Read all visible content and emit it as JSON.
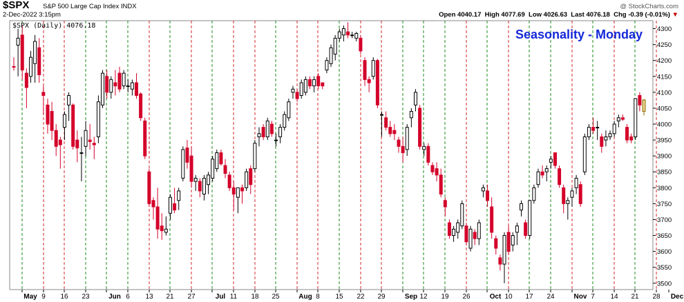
{
  "header": {
    "symbol": "$SPX",
    "full_name": "S&P 500 Large Cap Index INDX",
    "datetime": "2-Dec-2022 3:15pm",
    "credit": "@ StockCharts.com",
    "open_label": "Open",
    "open": "4040.17",
    "high_label": "High",
    "high": "4077.69",
    "low_label": "Low",
    "low": "4026.63",
    "last_label": "Last",
    "last": "4076.18",
    "chg_label": "Chg",
    "chg": "-0.39 (-0.01%)",
    "chg_marker": "▼"
  },
  "chart_data": {
    "type": "candlestick",
    "title": "Seasonality - Monday",
    "legend": "$SPX (Daily) 4076.18",
    "ylim": [
      3480,
      4325
    ],
    "y_ticks": [
      3500,
      3550,
      3600,
      3650,
      3700,
      3750,
      3800,
      3850,
      3900,
      3950,
      4000,
      4050,
      4100,
      4150,
      4200,
      4250,
      4300
    ],
    "x_ticks": [
      {
        "label": "May",
        "type": "month"
      },
      {
        "label": "9"
      },
      {
        "label": "16"
      },
      {
        "label": "23"
      },
      {
        "label": "Jun",
        "type": "month"
      },
      {
        "label": "6"
      },
      {
        "label": "13"
      },
      {
        "label": "21"
      },
      {
        "label": "27"
      },
      {
        "label": "Jul",
        "type": "month"
      },
      {
        "label": "11"
      },
      {
        "label": "18"
      },
      {
        "label": "25"
      },
      {
        "label": "Aug",
        "type": "month"
      },
      {
        "label": "8"
      },
      {
        "label": "15"
      },
      {
        "label": "22"
      },
      {
        "label": "29"
      },
      {
        "label": "Sep",
        "type": "month"
      },
      {
        "label": "12"
      },
      {
        "label": "19"
      },
      {
        "label": "26"
      },
      {
        "label": "Oct",
        "type": "month"
      },
      {
        "label": "10"
      },
      {
        "label": "17"
      },
      {
        "label": "24"
      },
      {
        "label": "Nov",
        "type": "month"
      },
      {
        "label": "7"
      },
      {
        "label": "14"
      },
      {
        "label": "21"
      },
      {
        "label": "28"
      },
      {
        "label": "Dec",
        "type": "month"
      }
    ],
    "monday_lines": [
      {
        "label": "May 2",
        "color": "green"
      },
      {
        "label": "May 9",
        "color": "red"
      },
      {
        "label": "May 16",
        "color": "red"
      },
      {
        "label": "May 23",
        "color": "green"
      },
      {
        "label": "May 31",
        "color": "green"
      },
      {
        "label": "Jun 6",
        "color": "green"
      },
      {
        "label": "Jun 13",
        "color": "red"
      },
      {
        "label": "Jun 21",
        "color": "green"
      },
      {
        "label": "Jun 27",
        "color": "red"
      },
      {
        "label": "Jul 4",
        "color": "green"
      },
      {
        "label": "Jul 11",
        "color": "red"
      },
      {
        "label": "Jul 18",
        "color": "red"
      },
      {
        "label": "Jul 25",
        "color": "green"
      },
      {
        "label": "Aug 1",
        "color": "red"
      },
      {
        "label": "Aug 8",
        "color": "red"
      },
      {
        "label": "Aug 15",
        "color": "green"
      },
      {
        "label": "Aug 22",
        "color": "red"
      },
      {
        "label": "Aug 29",
        "color": "red"
      },
      {
        "label": "Sep 6",
        "color": "green"
      },
      {
        "label": "Sep 12",
        "color": "green"
      },
      {
        "label": "Sep 19",
        "color": "green"
      },
      {
        "label": "Sep 26",
        "color": "red"
      },
      {
        "label": "Oct 3",
        "color": "green"
      },
      {
        "label": "Oct 10",
        "color": "red"
      },
      {
        "label": "Oct 17",
        "color": "green"
      },
      {
        "label": "Oct 24",
        "color": "green"
      },
      {
        "label": "Oct 31",
        "color": "red"
      },
      {
        "label": "Nov 7",
        "color": "green"
      },
      {
        "label": "Nov 14",
        "color": "red"
      },
      {
        "label": "Nov 21",
        "color": "green"
      },
      {
        "label": "Nov 28",
        "color": "red"
      }
    ],
    "candles": [
      {
        "o": 4181,
        "h": 4210,
        "l": 4168,
        "c": 4180
      },
      {
        "o": 4248,
        "h": 4300,
        "l": 4150,
        "c": 4270
      },
      {
        "o": 4280,
        "h": 4310,
        "l": 4140,
        "c": 4170
      },
      {
        "o": 4160,
        "h": 4175,
        "l": 4050,
        "c": 4115
      },
      {
        "o": 4150,
        "h": 4230,
        "l": 4130,
        "c": 4210
      },
      {
        "o": 4190,
        "h": 4280,
        "l": 4130,
        "c": 4260
      },
      {
        "o": 4240,
        "h": 4270,
        "l": 4130,
        "c": 4155
      },
      {
        "o": 4100,
        "h": 4120,
        "l": 4030,
        "c": 4090
      },
      {
        "o": 4060,
        "h": 4080,
        "l": 3970,
        "c": 4000
      },
      {
        "o": 4040,
        "h": 4070,
        "l": 3950,
        "c": 3980
      },
      {
        "o": 3980,
        "h": 4000,
        "l": 3900,
        "c": 3930
      },
      {
        "o": 3950,
        "h": 3960,
        "l": 3860,
        "c": 3935
      },
      {
        "o": 3990,
        "h": 4040,
        "l": 3950,
        "c": 4030
      },
      {
        "o": 4060,
        "h": 4100,
        "l": 4010,
        "c": 4090
      },
      {
        "o": 4060,
        "h": 4065,
        "l": 3920,
        "c": 3930
      },
      {
        "o": 3950,
        "h": 3980,
        "l": 3880,
        "c": 3925
      },
      {
        "o": 3910,
        "h": 3960,
        "l": 3820,
        "c": 3910
      },
      {
        "o": 3930,
        "h": 4010,
        "l": 3900,
        "c": 3980
      },
      {
        "o": 3950,
        "h": 4000,
        "l": 3920,
        "c": 3945
      },
      {
        "o": 3940,
        "h": 3960,
        "l": 3890,
        "c": 3935
      },
      {
        "o": 3960,
        "h": 4090,
        "l": 3940,
        "c": 4070
      },
      {
        "o": 4060,
        "h": 4170,
        "l": 4050,
        "c": 4160
      },
      {
        "o": 4150,
        "h": 4170,
        "l": 4080,
        "c": 4100
      },
      {
        "o": 4100,
        "h": 4150,
        "l": 4080,
        "c": 4140
      },
      {
        "o": 4130,
        "h": 4170,
        "l": 4090,
        "c": 4120
      },
      {
        "o": 4160,
        "h": 4180,
        "l": 4100,
        "c": 4110
      },
      {
        "o": 4120,
        "h": 4170,
        "l": 4110,
        "c": 4160
      },
      {
        "o": 4120,
        "h": 4140,
        "l": 4100,
        "c": 4120
      },
      {
        "o": 4110,
        "h": 4140,
        "l": 4090,
        "c": 4130
      },
      {
        "o": 4130,
        "h": 4160,
        "l": 4080,
        "c": 4090
      },
      {
        "o": 4095,
        "h": 4100,
        "l": 4010,
        "c": 4020
      },
      {
        "o": 4010,
        "h": 4020,
        "l": 3890,
        "c": 3900
      },
      {
        "o": 3850,
        "h": 3860,
        "l": 3740,
        "c": 3750
      },
      {
        "o": 3760,
        "h": 3770,
        "l": 3700,
        "c": 3740
      },
      {
        "o": 3740,
        "h": 3800,
        "l": 3640,
        "c": 3670
      },
      {
        "o": 3680,
        "h": 3720,
        "l": 3636,
        "c": 3665
      },
      {
        "o": 3660,
        "h": 3710,
        "l": 3650,
        "c": 3670
      },
      {
        "o": 3720,
        "h": 3780,
        "l": 3700,
        "c": 3770
      },
      {
        "o": 3750,
        "h": 3800,
        "l": 3720,
        "c": 3730
      },
      {
        "o": 3760,
        "h": 3800,
        "l": 3730,
        "c": 3790
      },
      {
        "o": 3830,
        "h": 3930,
        "l": 3820,
        "c": 3920
      },
      {
        "o": 3925,
        "h": 3950,
        "l": 3860,
        "c": 3880
      },
      {
        "o": 3900,
        "h": 3930,
        "l": 3800,
        "c": 3820
      },
      {
        "o": 3820,
        "h": 3840,
        "l": 3790,
        "c": 3830
      },
      {
        "o": 3820,
        "h": 3830,
        "l": 3770,
        "c": 3790
      },
      {
        "o": 3780,
        "h": 3840,
        "l": 3760,
        "c": 3830
      },
      {
        "o": 3810,
        "h": 3850,
        "l": 3780,
        "c": 3840
      },
      {
        "o": 3830,
        "h": 3900,
        "l": 3820,
        "c": 3890
      },
      {
        "o": 3860,
        "h": 3920,
        "l": 3850,
        "c": 3910
      },
      {
        "o": 3910,
        "h": 3920,
        "l": 3870,
        "c": 3875
      },
      {
        "o": 3870,
        "h": 3890,
        "l": 3830,
        "c": 3845
      },
      {
        "o": 3840,
        "h": 3850,
        "l": 3790,
        "c": 3800
      },
      {
        "o": 3800,
        "h": 3820,
        "l": 3730,
        "c": 3780
      },
      {
        "o": 3770,
        "h": 3800,
        "l": 3720,
        "c": 3800
      },
      {
        "o": 3800,
        "h": 3810,
        "l": 3750,
        "c": 3790
      },
      {
        "o": 3800,
        "h": 3860,
        "l": 3790,
        "c": 3850
      },
      {
        "o": 3860,
        "h": 3870,
        "l": 3780,
        "c": 3810
      },
      {
        "o": 3860,
        "h": 3950,
        "l": 3850,
        "c": 3940
      },
      {
        "o": 3960,
        "h": 3990,
        "l": 3930,
        "c": 3970
      },
      {
        "o": 3990,
        "h": 4000,
        "l": 3950,
        "c": 3960
      },
      {
        "o": 3960,
        "h": 4020,
        "l": 3950,
        "c": 4010
      },
      {
        "o": 4000,
        "h": 4010,
        "l": 3960,
        "c": 3970
      },
      {
        "o": 3950,
        "h": 3970,
        "l": 3930,
        "c": 3950
      },
      {
        "o": 3960,
        "h": 4000,
        "l": 3940,
        "c": 3990
      },
      {
        "o": 3990,
        "h": 4040,
        "l": 3980,
        "c": 4030
      },
      {
        "o": 4020,
        "h": 4080,
        "l": 4010,
        "c": 4070
      },
      {
        "o": 4100,
        "h": 4120,
        "l": 4080,
        "c": 4110
      },
      {
        "o": 4100,
        "h": 4110,
        "l": 4070,
        "c": 4080
      },
      {
        "o": 4090,
        "h": 4140,
        "l": 4080,
        "c": 4130
      },
      {
        "o": 4100,
        "h": 4150,
        "l": 4090,
        "c": 4140
      },
      {
        "o": 4140,
        "h": 4150,
        "l": 4110,
        "c": 4120
      },
      {
        "o": 4120,
        "h": 4150,
        "l": 4100,
        "c": 4140
      },
      {
        "o": 4150,
        "h": 4160,
        "l": 4110,
        "c": 4120
      },
      {
        "o": 4130,
        "h": 4130,
        "l": 4110,
        "c": 4120
      },
      {
        "o": 4170,
        "h": 4210,
        "l": 4160,
        "c": 4200
      },
      {
        "o": 4190,
        "h": 4250,
        "l": 4180,
        "c": 4240
      },
      {
        "o": 4220,
        "h": 4280,
        "l": 4200,
        "c": 4270
      },
      {
        "o": 4270,
        "h": 4300,
        "l": 4260,
        "c": 4290
      },
      {
        "o": 4280,
        "h": 4310,
        "l": 4260,
        "c": 4300
      },
      {
        "o": 4290,
        "h": 4320,
        "l": 4270,
        "c": 4280
      },
      {
        "o": 4280,
        "h": 4290,
        "l": 4270,
        "c": 4280
      },
      {
        "o": 4270,
        "h": 4290,
        "l": 4260,
        "c": 4285
      },
      {
        "o": 4270,
        "h": 4280,
        "l": 4220,
        "c": 4230
      },
      {
        "o": 4200,
        "h": 4210,
        "l": 4120,
        "c": 4140
      },
      {
        "o": 4140,
        "h": 4150,
        "l": 4100,
        "c": 4130
      },
      {
        "o": 4150,
        "h": 4210,
        "l": 4140,
        "c": 4200
      },
      {
        "o": 4200,
        "h": 4205,
        "l": 4050,
        "c": 4060
      },
      {
        "o": 4030,
        "h": 4040,
        "l": 3960,
        "c": 4030
      },
      {
        "o": 4020,
        "h": 4040,
        "l": 3980,
        "c": 3990
      },
      {
        "o": 3990,
        "h": 4010,
        "l": 3960,
        "c": 3970
      },
      {
        "o": 3980,
        "h": 4000,
        "l": 3950,
        "c": 3970
      },
      {
        "o": 3950,
        "h": 3960,
        "l": 3910,
        "c": 3930
      },
      {
        "o": 3930,
        "h": 3960,
        "l": 3880,
        "c": 3910
      },
      {
        "o": 3920,
        "h": 4000,
        "l": 3900,
        "c": 3990
      },
      {
        "o": 4020,
        "h": 4050,
        "l": 3990,
        "c": 4040
      },
      {
        "o": 4060,
        "h": 4110,
        "l": 4040,
        "c": 4100
      },
      {
        "o": 4050,
        "h": 4060,
        "l": 3920,
        "c": 3930
      },
      {
        "o": 3920,
        "h": 3940,
        "l": 3900,
        "c": 3930
      },
      {
        "o": 3930,
        "h": 3940,
        "l": 3870,
        "c": 3880
      },
      {
        "o": 3870,
        "h": 3880,
        "l": 3840,
        "c": 3850
      },
      {
        "o": 3860,
        "h": 3880,
        "l": 3820,
        "c": 3840
      },
      {
        "o": 3840,
        "h": 3860,
        "l": 3770,
        "c": 3780
      },
      {
        "o": 3760,
        "h": 3770,
        "l": 3710,
        "c": 3740
      },
      {
        "o": 3690,
        "h": 3700,
        "l": 3640,
        "c": 3650
      },
      {
        "o": 3650,
        "h": 3680,
        "l": 3630,
        "c": 3670
      },
      {
        "o": 3660,
        "h": 3700,
        "l": 3640,
        "c": 3690
      },
      {
        "o": 3680,
        "h": 3760,
        "l": 3670,
        "c": 3750
      },
      {
        "o": 3680,
        "h": 3690,
        "l": 3620,
        "c": 3630
      },
      {
        "o": 3610,
        "h": 3680,
        "l": 3600,
        "c": 3670
      },
      {
        "o": 3660,
        "h": 3670,
        "l": 3620,
        "c": 3640
      },
      {
        "o": 3640,
        "h": 3700,
        "l": 3620,
        "c": 3690
      },
      {
        "o": 3790,
        "h": 3810,
        "l": 3770,
        "c": 3800
      },
      {
        "o": 3790,
        "h": 3810,
        "l": 3740,
        "c": 3760
      },
      {
        "o": 3740,
        "h": 3770,
        "l": 3640,
        "c": 3660
      },
      {
        "o": 3640,
        "h": 3650,
        "l": 3590,
        "c": 3610
      },
      {
        "o": 3580,
        "h": 3590,
        "l": 3540,
        "c": 3560
      },
      {
        "o": 3560,
        "h": 3660,
        "l": 3500,
        "c": 3650
      },
      {
        "o": 3660,
        "h": 3680,
        "l": 3590,
        "c": 3600
      },
      {
        "o": 3620,
        "h": 3660,
        "l": 3600,
        "c": 3650
      },
      {
        "o": 3660,
        "h": 3690,
        "l": 3620,
        "c": 3680
      },
      {
        "o": 3730,
        "h": 3760,
        "l": 3710,
        "c": 3750
      },
      {
        "o": 3690,
        "h": 3700,
        "l": 3640,
        "c": 3650
      },
      {
        "o": 3650,
        "h": 3760,
        "l": 3640,
        "c": 3760
      },
      {
        "o": 3760,
        "h": 3810,
        "l": 3750,
        "c": 3800
      },
      {
        "o": 3810,
        "h": 3860,
        "l": 3800,
        "c": 3850
      },
      {
        "o": 3850,
        "h": 3870,
        "l": 3830,
        "c": 3840
      },
      {
        "o": 3850,
        "h": 3870,
        "l": 3820,
        "c": 3860
      },
      {
        "o": 3880,
        "h": 3900,
        "l": 3860,
        "c": 3890
      },
      {
        "o": 3910,
        "h": 3910,
        "l": 3860,
        "c": 3870
      },
      {
        "o": 3860,
        "h": 3870,
        "l": 3800,
        "c": 3810
      },
      {
        "o": 3800,
        "h": 3810,
        "l": 3720,
        "c": 3750
      },
      {
        "o": 3750,
        "h": 3770,
        "l": 3700,
        "c": 3760
      },
      {
        "o": 3770,
        "h": 3800,
        "l": 3740,
        "c": 3790
      },
      {
        "o": 3800,
        "h": 3840,
        "l": 3780,
        "c": 3830
      },
      {
        "o": 3810,
        "h": 3820,
        "l": 3740,
        "c": 3750
      },
      {
        "o": 3850,
        "h": 3970,
        "l": 3840,
        "c": 3960
      },
      {
        "o": 3960,
        "h": 4000,
        "l": 3950,
        "c": 3990
      },
      {
        "o": 3990,
        "h": 4020,
        "l": 3970,
        "c": 3980
      },
      {
        "o": 3990,
        "h": 4010,
        "l": 3950,
        "c": 3990
      },
      {
        "o": 3960,
        "h": 3970,
        "l": 3910,
        "c": 3930
      },
      {
        "o": 3950,
        "h": 3980,
        "l": 3930,
        "c": 3960
      },
      {
        "o": 3960,
        "h": 3980,
        "l": 3950,
        "c": 3970
      },
      {
        "o": 3970,
        "h": 4010,
        "l": 3960,
        "c": 4000
      },
      {
        "o": 4010,
        "h": 4030,
        "l": 3990,
        "c": 4020
      },
      {
        "o": 4020,
        "h": 4030,
        "l": 4010,
        "c": 4015
      },
      {
        "o": 3990,
        "h": 4000,
        "l": 3940,
        "c": 3950
      },
      {
        "o": 3960,
        "h": 3970,
        "l": 3940,
        "c": 3950
      },
      {
        "o": 3960,
        "h": 4080,
        "l": 3950,
        "c": 4080
      },
      {
        "o": 4090,
        "h": 4100,
        "l": 4040,
        "c": 4060
      },
      {
        "o": 4040,
        "h": 4078,
        "l": 4027,
        "c": 4076
      }
    ]
  }
}
